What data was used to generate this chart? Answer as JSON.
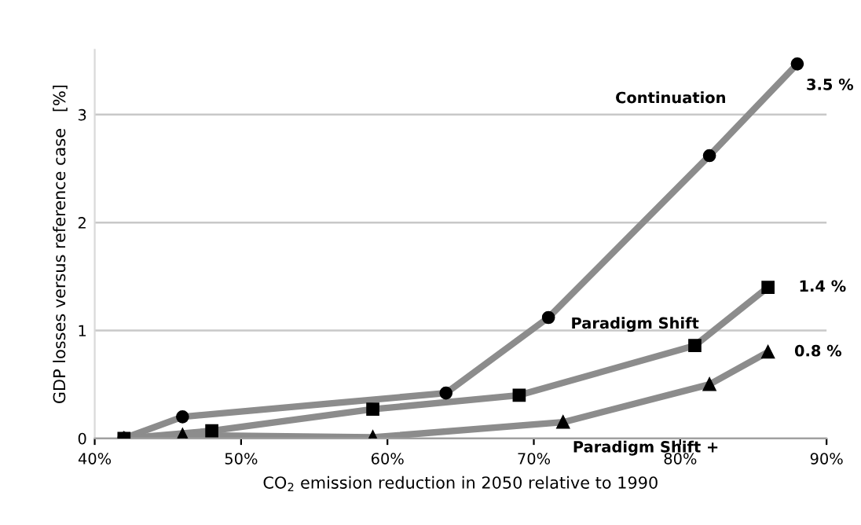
{
  "chart_data": {
    "type": "line",
    "xlabel": "CO$_{2}$ emission reduction in 2050 relative to 1990",
    "ylabel": "GDP losses versus reference case   [%]",
    "series": [
      {
        "name": "Continuation",
        "color": "#8c8c8c",
        "marker": "circle",
        "x": [
          42,
          46,
          64,
          71,
          82,
          88
        ],
        "values": [
          0,
          0.2,
          0.42,
          1.12,
          2.62,
          3.47
        ],
        "value_labels": [
          null,
          null,
          null,
          null,
          null,
          "3.5 %"
        ]
      },
      {
        "name": "Paradigm Shift",
        "color": "#8c8c8c",
        "marker": "square",
        "x": [
          42,
          48,
          59,
          69,
          81,
          86
        ],
        "values": [
          0,
          0.07,
          0.27,
          0.4,
          0.86,
          1.4
        ],
        "value_labels": [
          null,
          null,
          null,
          null,
          null,
          "1.4 %"
        ]
      },
      {
        "name": "Paradigm Shift +",
        "color": "#8c8c8c",
        "marker": "triangle",
        "x": [
          42,
          46,
          59,
          72,
          82,
          86
        ],
        "values": [
          0,
          0.03,
          0.01,
          0.15,
          0.5,
          0.8
        ],
        "value_labels": [
          null,
          null,
          null,
          null,
          null,
          "0.8 %"
        ]
      }
    ],
    "xlim": [
      40,
      90
    ],
    "xticks": [
      {
        "value": 40,
        "label": "40%"
      },
      {
        "value": 50,
        "label": "50%"
      },
      {
        "value": 60,
        "label": "60%"
      },
      {
        "value": 70,
        "label": "70%"
      },
      {
        "value": 80,
        "label": "80%"
      },
      {
        "value": 90,
        "label": "90%"
      }
    ],
    "ylim": [
      0,
      3.6
    ],
    "yticks": [
      0,
      1,
      2,
      3
    ],
    "grid": "y",
    "legend": false
  }
}
